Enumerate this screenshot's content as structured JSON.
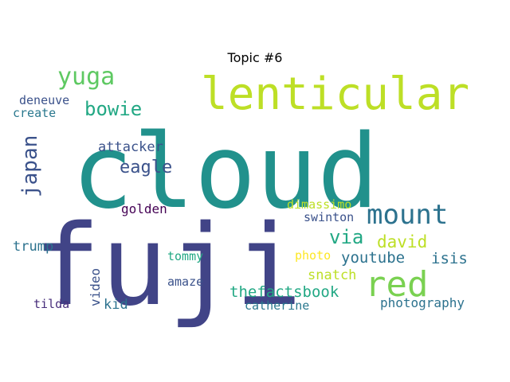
{
  "title": "Topic #6",
  "words": [
    {
      "text": "cloud",
      "color": "#21918c"
    },
    {
      "text": "fuji",
      "color": "#414487"
    },
    {
      "text": "lenticular",
      "color": "#bddf26"
    },
    {
      "text": "red",
      "color": "#7ad151"
    },
    {
      "text": "mount",
      "color": "#2c728e"
    },
    {
      "text": "yuga",
      "color": "#5ec962"
    },
    {
      "text": "bowie",
      "color": "#22a884"
    },
    {
      "text": "japan",
      "color": "#3b528b"
    },
    {
      "text": "eagle",
      "color": "#3b528b"
    },
    {
      "text": "attacker",
      "color": "#3b528b"
    },
    {
      "text": "via",
      "color": "#22a884"
    },
    {
      "text": "david",
      "color": "#bddf26"
    },
    {
      "text": "youtube",
      "color": "#2c728e"
    },
    {
      "text": "isis",
      "color": "#2c728e"
    },
    {
      "text": "thefactsbook",
      "color": "#22a884"
    },
    {
      "text": "snatch",
      "color": "#bddf26"
    },
    {
      "text": "photography",
      "color": "#2c728e"
    },
    {
      "text": "golden",
      "color": "#440154"
    },
    {
      "text": "dimassimo",
      "color": "#bddf26"
    },
    {
      "text": "swinton",
      "color": "#3b528b"
    },
    {
      "text": "photo",
      "color": "#fde725"
    },
    {
      "text": "catherine",
      "color": "#2a788e"
    },
    {
      "text": "video",
      "color": "#3b528b"
    },
    {
      "text": "kid",
      "color": "#2c728e"
    },
    {
      "text": "tommy",
      "color": "#22a884"
    },
    {
      "text": "amaze",
      "color": "#3b528b"
    },
    {
      "text": "trump",
      "color": "#2c728e"
    },
    {
      "text": "tilda",
      "color": "#472d7b"
    },
    {
      "text": "deneuve",
      "color": "#3b528b"
    },
    {
      "text": "create",
      "color": "#2a788e"
    }
  ]
}
